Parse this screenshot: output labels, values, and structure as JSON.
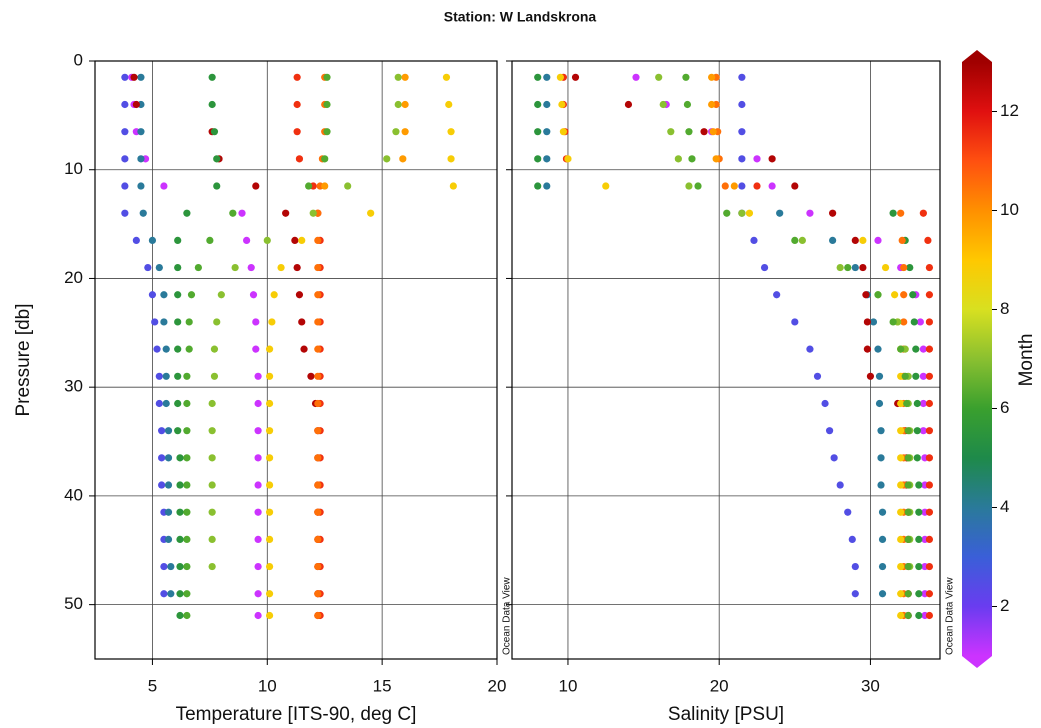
{
  "chart_data": [
    {
      "type": "scatter",
      "title": "Station: W Landskrona",
      "xlabel": "Temperature [ITS-90, deg C]",
      "ylabel": "Pressure [db]",
      "watermark": "Ocean Data View",
      "xlim": [
        2.5,
        20
      ],
      "xticks": [
        5,
        10,
        15,
        20
      ],
      "ylim": [
        55,
        0
      ],
      "yticks": [
        0,
        10,
        20,
        30,
        40,
        50
      ],
      "grid": true,
      "ytick_labels": true,
      "series": [
        {
          "month": 2.5,
          "y": [
            1.5,
            4,
            6.5,
            9,
            11.5,
            14,
            16.5,
            19,
            21.5,
            24,
            26.5,
            29,
            31.5,
            34,
            36.5,
            39,
            41.5,
            44,
            46.5,
            49
          ],
          "x": [
            3.8,
            3.8,
            3.8,
            3.8,
            3.8,
            3.8,
            4.3,
            4.8,
            5.0,
            5.1,
            5.2,
            5.3,
            5.3,
            5.4,
            5.4,
            5.4,
            5.5,
            5.5,
            5.5,
            5.5
          ]
        },
        {
          "month": 1,
          "y": [
            1.5,
            4,
            6.5,
            9,
            11.5,
            14,
            16.5,
            19,
            21.5,
            24,
            26.5,
            29,
            31.5,
            34,
            36.5,
            39,
            41.5,
            44,
            46.5,
            49,
            51
          ],
          "x": [
            4.1,
            4.2,
            4.3,
            4.7,
            5.5,
            8.9,
            9.1,
            9.3,
            9.4,
            9.5,
            9.5,
            9.6,
            9.6,
            9.6,
            9.6,
            9.6,
            9.6,
            9.6,
            9.6,
            9.6,
            9.6
          ]
        },
        {
          "month": 4,
          "y": [
            1.5,
            4,
            6.5,
            9,
            11.5,
            14,
            16.5,
            19,
            21.5,
            24,
            26.5,
            29,
            31.5,
            34,
            36.5,
            39,
            41.5,
            44,
            46.5,
            49
          ],
          "x": [
            4.5,
            4.5,
            4.5,
            4.5,
            4.5,
            4.6,
            5.0,
            5.3,
            5.5,
            5.5,
            5.6,
            5.6,
            5.6,
            5.7,
            5.7,
            5.7,
            5.7,
            5.7,
            5.8,
            5.8
          ]
        },
        {
          "month": 12.7,
          "y": [
            1.5,
            4,
            6.5,
            9,
            11.5,
            14,
            16.5,
            19,
            21.5,
            24,
            26.5,
            29,
            31.5,
            34,
            36.5,
            39,
            41.5,
            44,
            46.5,
            49,
            51
          ],
          "x": [
            4.2,
            4.3,
            7.6,
            7.9,
            9.5,
            10.8,
            11.2,
            11.3,
            11.4,
            11.5,
            11.6,
            11.9,
            12.1,
            12.2,
            12.2,
            12.2,
            12.2,
            12.2,
            12.2,
            12.2,
            12.2
          ]
        },
        {
          "month": 5.5,
          "y": [
            1.5,
            4,
            6.5,
            9,
            11.5,
            14,
            16.5,
            19,
            21.5,
            24,
            26.5,
            29,
            31.5,
            34,
            36.5,
            39,
            41.5,
            44,
            46.5,
            49,
            51
          ],
          "x": [
            7.6,
            7.6,
            7.7,
            7.8,
            7.8,
            6.5,
            6.1,
            6.1,
            6.1,
            6.1,
            6.1,
            6.1,
            6.1,
            6.1,
            6.2,
            6.2,
            6.2,
            6.2,
            6.2,
            6.2,
            6.2
          ]
        },
        {
          "month": 11.5,
          "y": [
            1.5,
            4,
            6.5,
            9,
            11.5,
            14,
            16.5,
            19,
            21.5,
            24,
            26.5,
            29,
            31.5,
            34,
            36.5,
            39,
            41.5,
            44,
            46.5,
            49,
            51
          ],
          "x": [
            11.3,
            11.3,
            11.3,
            11.4,
            12.0,
            12.2,
            12.3,
            12.3,
            12.3,
            12.3,
            12.3,
            12.3,
            12.3,
            12.3,
            12.3,
            12.3,
            12.3,
            12.3,
            12.3,
            12.3,
            12.3
          ]
        },
        {
          "month": 10.5,
          "y": [
            1.5,
            4,
            6.5,
            9,
            11.5,
            14,
            16.5,
            19,
            21.5,
            24,
            26.5,
            29,
            31.5,
            34,
            36.5,
            39,
            41.5,
            44,
            46.5,
            49,
            51
          ],
          "x": [
            12.5,
            12.5,
            12.5,
            12.4,
            12.3,
            12.2,
            12.2,
            12.2,
            12.2,
            12.2,
            12.2,
            12.2,
            12.2,
            12.2,
            12.2,
            12.2,
            12.2,
            12.2,
            12.2,
            12.2,
            12.2
          ]
        },
        {
          "month": 8.8,
          "y": [
            1.5,
            4,
            6.5,
            9,
            11.5,
            14,
            16.5,
            19,
            21.5,
            24,
            26.5,
            29,
            31.5,
            34,
            36.5,
            39,
            41.5,
            44,
            46.5,
            49,
            51
          ],
          "x": [
            17.8,
            17.9,
            18.0,
            18.0,
            18.1,
            14.5,
            11.5,
            10.6,
            10.3,
            10.2,
            10.1,
            10.1,
            10.1,
            10.1,
            10.1,
            10.1,
            10.1,
            10.1,
            10.1,
            10.1,
            10.1
          ]
        },
        {
          "month": 7,
          "y": [
            1.5,
            4,
            6.5,
            9,
            11.5,
            14,
            16.5,
            19,
            21.5,
            24,
            26.5,
            29,
            31.5,
            34,
            36.5,
            39,
            41.5,
            44,
            46.5
          ],
          "x": [
            15.7,
            15.7,
            15.6,
            15.2,
            13.5,
            12.0,
            10.0,
            8.6,
            8.0,
            7.8,
            7.7,
            7.7,
            7.6,
            7.6,
            7.6,
            7.6,
            7.6,
            7.6,
            7.6
          ]
        },
        {
          "month": 6.3,
          "y": [
            1.5,
            4,
            6.5,
            9,
            11.5,
            14,
            16.5,
            19,
            21.5,
            24,
            26.5,
            29,
            31.5,
            34,
            36.5,
            39,
            41.5,
            44,
            46.5,
            49,
            51
          ],
          "x": [
            12.6,
            12.6,
            12.6,
            12.5,
            11.8,
            8.5,
            7.5,
            7.0,
            6.7,
            6.6,
            6.6,
            6.5,
            6.5,
            6.5,
            6.5,
            6.5,
            6.5,
            6.5,
            6.5,
            6.5,
            6.5
          ]
        },
        {
          "month": 9.8,
          "y": [
            1.5,
            4,
            6.5,
            9,
            11.5
          ],
          "x": [
            16.0,
            16.0,
            16.0,
            15.9,
            12.5
          ]
        }
      ]
    },
    {
      "type": "scatter",
      "xlabel": "Salinity [PSU]",
      "watermark": "Ocean Data View",
      "xlim": [
        6.3,
        34.6
      ],
      "xticks": [
        10,
        20,
        30
      ],
      "ylim": [
        55,
        0
      ],
      "yticks": [
        0,
        10,
        20,
        30,
        40,
        50
      ],
      "grid": true,
      "ytick_labels": false,
      "colorbar": {
        "label": "Month",
        "lim": [
          1,
          13
        ],
        "ticks": [
          2,
          4,
          6,
          8,
          10,
          12
        ],
        "colors": [
          "#cc33ff",
          "#6a3cf0",
          "#3a5fd8",
          "#2a7a9a",
          "#1e8a4a",
          "#3aa02e",
          "#8ac030",
          "#d8e020",
          "#ffc800",
          "#ff9000",
          "#ff5010",
          "#e01010",
          "#a00000"
        ]
      },
      "series": [
        {
          "month": 2.5,
          "y": [
            1.5,
            4,
            6.5,
            9,
            11.5,
            14,
            16.5,
            19,
            21.5,
            24,
            26.5,
            29,
            31.5,
            34,
            36.5,
            39,
            41.5,
            44,
            46.5,
            49
          ],
          "x": [
            21.5,
            21.5,
            21.5,
            21.5,
            21.5,
            21.5,
            22.3,
            23.0,
            23.8,
            25.0,
            26.0,
            26.5,
            27.0,
            27.3,
            27.6,
            28.0,
            28.5,
            28.8,
            29.0,
            29.0
          ]
        },
        {
          "month": 1,
          "y": [
            1.5,
            4,
            6.5,
            9,
            11.5,
            14,
            16.5,
            19,
            21.5,
            24,
            26.5,
            29,
            31.5,
            34,
            36.5,
            39,
            41.5,
            44,
            46.5,
            49,
            51
          ],
          "x": [
            14.5,
            16.5,
            19.5,
            22.5,
            23.5,
            26.0,
            30.5,
            32.0,
            33.0,
            33.3,
            33.5,
            33.5,
            33.5,
            33.5,
            33.6,
            33.6,
            33.6,
            33.6,
            33.6,
            33.6,
            33.6
          ]
        },
        {
          "month": 4,
          "y": [
            1.5,
            4,
            6.5,
            9,
            11.5,
            14,
            16.5,
            19,
            21.5,
            24,
            26.5,
            29,
            31.5,
            34,
            36.5,
            39,
            41.5,
            44,
            46.5,
            49
          ],
          "x": [
            8.6,
            8.6,
            8.6,
            8.6,
            8.6,
            24.0,
            27.5,
            29.0,
            29.8,
            30.2,
            30.5,
            30.6,
            30.6,
            30.7,
            30.7,
            30.7,
            30.8,
            30.8,
            30.8,
            30.8
          ]
        },
        {
          "month": 12.7,
          "y": [
            1.5,
            4,
            6.5,
            9,
            11.5,
            14,
            16.5,
            19,
            21.5,
            24,
            26.5,
            29,
            31.5,
            34,
            36.5,
            39,
            41.5,
            44,
            46.5,
            49,
            51
          ],
          "x": [
            10.5,
            14.0,
            19.0,
            23.5,
            25.0,
            27.5,
            29.0,
            29.5,
            29.7,
            29.8,
            29.8,
            30.0,
            31.8,
            32.3,
            32.4,
            32.4,
            32.5,
            32.5,
            32.5,
            32.5,
            32.5
          ]
        },
        {
          "month": 5.5,
          "y": [
            1.5,
            4,
            6.5,
            9,
            11.5,
            14,
            16.5,
            19,
            21.5,
            24,
            26.5,
            29,
            31.5,
            34,
            36.5,
            39,
            41.5,
            44,
            46.5,
            49,
            51
          ],
          "x": [
            8.0,
            8.0,
            8.0,
            8.0,
            8.0,
            31.5,
            32.3,
            32.6,
            32.8,
            32.9,
            33.0,
            33.0,
            33.1,
            33.1,
            33.1,
            33.2,
            33.2,
            33.2,
            33.2,
            33.2,
            33.2
          ]
        },
        {
          "month": 11.5,
          "y": [
            1.5,
            4,
            6.5,
            9,
            11.5,
            14,
            16.5,
            19,
            21.5,
            24,
            26.5,
            29,
            31.5,
            34,
            36.5,
            39,
            41.5,
            44,
            46.5,
            49,
            51
          ],
          "x": [
            9.7,
            9.7,
            9.8,
            9.9,
            22.5,
            33.5,
            33.8,
            33.9,
            33.9,
            33.9,
            33.9,
            33.9,
            33.9,
            33.9,
            33.9,
            33.9,
            33.9,
            33.9,
            33.9,
            33.9,
            33.9
          ]
        },
        {
          "month": 10.5,
          "y": [
            1.5,
            4,
            6.5,
            9,
            11.5,
            14,
            16.5,
            19,
            21.5,
            24,
            26.5,
            29,
            31.5,
            34,
            36.5,
            39,
            41.5,
            44,
            46.5,
            49,
            51
          ],
          "x": [
            19.8,
            19.8,
            19.9,
            20.0,
            20.4,
            32.0,
            32.1,
            32.2,
            32.2,
            32.2,
            32.2,
            32.2,
            32.2,
            32.2,
            32.2,
            32.2,
            32.2,
            32.2,
            32.2,
            32.2,
            32.2
          ]
        },
        {
          "month": 8.8,
          "y": [
            1.5,
            4,
            6.5,
            9,
            11.5,
            14,
            16.5,
            19,
            21.5,
            24,
            26.5,
            29,
            31.5,
            34,
            36.5,
            39,
            41.5,
            44,
            46.5,
            49,
            51
          ],
          "x": [
            9.5,
            9.6,
            9.7,
            10.0,
            12.5,
            22.0,
            29.5,
            31.0,
            31.6,
            31.8,
            32.0,
            32.0,
            32.0,
            32.0,
            32.0,
            32.0,
            32.0,
            32.0,
            32.0,
            32.0,
            32.0
          ]
        },
        {
          "month": 7,
          "y": [
            1.5,
            4,
            6.5,
            9,
            11.5,
            14,
            16.5,
            19,
            21.5,
            24,
            26.5,
            29,
            31.5,
            34,
            36.5,
            39,
            41.5,
            44,
            46.5
          ],
          "x": [
            16.0,
            16.3,
            16.8,
            17.3,
            18.0,
            21.5,
            25.5,
            28.0,
            30.5,
            31.8,
            32.3,
            32.5,
            32.5,
            32.6,
            32.6,
            32.6,
            32.6,
            32.6,
            32.6
          ]
        },
        {
          "month": 6.3,
          "y": [
            1.5,
            4,
            6.5,
            9,
            11.5,
            14,
            16.5,
            19,
            21.5,
            24,
            26.5,
            29,
            31.5,
            34,
            36.5,
            39,
            41.5,
            44,
            46.5,
            49,
            51
          ],
          "x": [
            17.8,
            17.9,
            18.0,
            18.2,
            18.6,
            20.5,
            25.0,
            28.5,
            30.5,
            31.5,
            32.0,
            32.3,
            32.4,
            32.5,
            32.5,
            32.5,
            32.5,
            32.5,
            32.5,
            32.5,
            32.5
          ]
        },
        {
          "month": 9.8,
          "y": [
            1.5,
            4,
            6.5,
            9,
            11.5
          ],
          "x": [
            19.5,
            19.5,
            19.6,
            19.8,
            21.0
          ]
        }
      ]
    }
  ]
}
